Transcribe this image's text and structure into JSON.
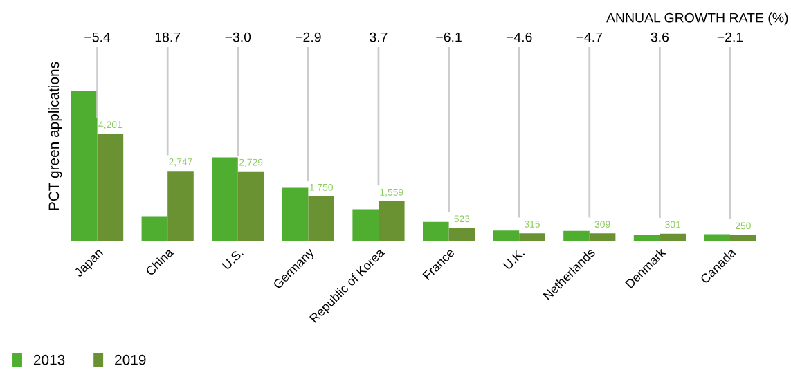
{
  "chart_data": {
    "type": "bar",
    "ylabel": "PCT green applications",
    "categories": [
      "Japan",
      "China",
      "U.S.",
      "Germany",
      "Republic of Korea",
      "France",
      "U.K.",
      "Netherlands",
      "Denmark",
      "Canada"
    ],
    "series": [
      {
        "name": "2013",
        "color": "#4fae2f",
        "values": [
          5860,
          980,
          3280,
          2090,
          1250,
          760,
          420,
          410,
          240,
          280
        ]
      },
      {
        "name": "2019",
        "color": "#6a9233",
        "values": [
          4201,
          2747,
          2729,
          1750,
          1559,
          523,
          315,
          309,
          301,
          250
        ],
        "value_labels": [
          "4,201",
          "2,747",
          "2,729",
          "1,750",
          "1,559",
          "523",
          "315",
          "309",
          "301",
          "250"
        ]
      }
    ],
    "tick_labels": "x",
    "grid": false,
    "legend": "bottom left",
    "annotations": [
      "ANNUAL GROWTH RATE (%)",
      "−5.4",
      "18.7",
      "−3.0",
      "−2.9",
      "3.7",
      "−6.1",
      "−4.6",
      "−4.7",
      "3.6",
      "−2.1"
    ]
  }
}
